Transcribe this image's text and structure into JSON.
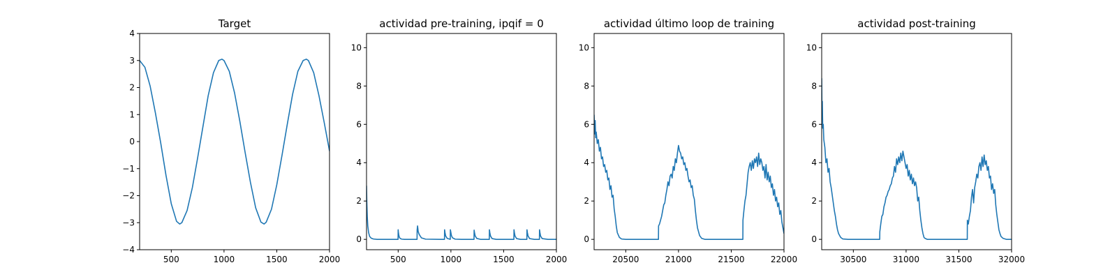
{
  "chart_data": [
    {
      "type": "line",
      "title": "Target",
      "xlabel": "",
      "ylabel": "",
      "xlim": [
        200,
        2000
      ],
      "ylim": [
        -4,
        4
      ],
      "xticks": [
        500,
        1000,
        1500,
        2000
      ],
      "yticks": [
        -4,
        -3,
        -2,
        -1,
        0,
        1,
        2,
        3,
        4
      ],
      "grid": false,
      "series": [
        {
          "color": "#1f77b4",
          "x": [
            200,
            250,
            300,
            350,
            400,
            450,
            500,
            550,
            580,
            600,
            650,
            700,
            750,
            800,
            850,
            900,
            950,
            980,
            1000,
            1050,
            1100,
            1150,
            1200,
            1250,
            1300,
            1350,
            1380,
            1400,
            1450,
            1500,
            1550,
            1600,
            1650,
            1700,
            1750,
            1780,
            1800,
            1850,
            1900,
            1950,
            2000
          ],
          "y": [
            3.0,
            2.75,
            2.05,
            1.05,
            -0.05,
            -1.25,
            -2.3,
            -2.95,
            -3.05,
            -3.0,
            -2.55,
            -1.7,
            -0.6,
            0.55,
            1.7,
            2.55,
            3.0,
            3.05,
            3.0,
            2.6,
            1.8,
            0.75,
            -0.4,
            -1.5,
            -2.45,
            -2.98,
            -3.05,
            -2.98,
            -2.5,
            -1.6,
            -0.5,
            0.65,
            1.75,
            2.6,
            3.0,
            3.05,
            3.0,
            2.55,
            1.7,
            0.7,
            -0.35
          ]
        }
      ]
    },
    {
      "type": "line",
      "title": "actividad pre-training, ipqif = 0",
      "xlabel": "",
      "ylabel": "",
      "xlim": [
        200,
        2000
      ],
      "ylim": [
        -0.54,
        10.74
      ],
      "xticks": [
        500,
        1000,
        1500,
        2000
      ],
      "yticks": [
        0,
        2,
        4,
        6,
        8,
        10
      ],
      "grid": false,
      "series": [
        {
          "color": "#1f77b4",
          "x": [
            200,
            203,
            207,
            212,
            220,
            230,
            245,
            265,
            300,
            400,
            499,
            500,
            502,
            506,
            512,
            520,
            535,
            560,
            600,
            660,
            679,
            680,
            684,
            690,
            700,
            720,
            760,
            900,
            939,
            940,
            944,
            950,
            965,
            994,
            995,
            999,
            1005,
            1015,
            1040,
            1100,
            1200,
            1219,
            1220,
            1224,
            1230,
            1245,
            1280,
            1364,
            1365,
            1369,
            1375,
            1390,
            1430,
            1500,
            1597,
            1598,
            1602,
            1608,
            1623,
            1660,
            1720,
            1721,
            1725,
            1731,
            1746,
            1790,
            1839,
            1840,
            1844,
            1850,
            1865,
            1920,
            2000
          ],
          "y": [
            2.8,
            1.9,
            1.2,
            0.7,
            0.35,
            0.15,
            0.06,
            0.02,
            0.0,
            0.0,
            0.0,
            0.5,
            0.38,
            0.22,
            0.1,
            0.04,
            0.01,
            0.0,
            0.0,
            0.0,
            0.0,
            0.5,
            0.7,
            0.4,
            0.25,
            0.08,
            0.01,
            0.0,
            0.0,
            0.5,
            0.35,
            0.18,
            0.05,
            0.0,
            0.5,
            0.38,
            0.2,
            0.08,
            0.01,
            0.0,
            0.0,
            0.0,
            0.48,
            0.34,
            0.18,
            0.05,
            0.0,
            0.0,
            0.5,
            0.35,
            0.18,
            0.04,
            0.0,
            0.0,
            0.0,
            0.5,
            0.34,
            0.17,
            0.04,
            0.0,
            0.0,
            0.5,
            0.35,
            0.18,
            0.04,
            0.0,
            0.0,
            0.5,
            0.35,
            0.17,
            0.04,
            0.0,
            0.0
          ]
        }
      ]
    },
    {
      "type": "line",
      "title": "actividad último loop de training",
      "xlabel": "",
      "ylabel": "",
      "xlim": [
        20200,
        22000
      ],
      "ylim": [
        -0.54,
        10.74
      ],
      "xticks": [
        20500,
        21000,
        21500,
        22000
      ],
      "yticks": [
        0,
        2,
        4,
        6,
        8,
        10
      ],
      "grid": false,
      "series": [
        {
          "color": "#1f77b4",
          "x": [
            20200,
            20205,
            20210,
            20215,
            20220,
            20230,
            20240,
            20250,
            20260,
            20270,
            20280,
            20290,
            20300,
            20310,
            20320,
            20330,
            20340,
            20350,
            20360,
            20370,
            20380,
            20390,
            20400,
            20410,
            20420,
            20440,
            20460,
            20500,
            20600,
            20700,
            20800,
            20810,
            20811,
            20820,
            20830,
            20840,
            20850,
            20860,
            20870,
            20880,
            20890,
            20900,
            20910,
            20920,
            20930,
            20940,
            20950,
            20960,
            20970,
            20980,
            20990,
            21000,
            21010,
            21020,
            21030,
            21040,
            21050,
            21060,
            21070,
            21080,
            21090,
            21100,
            21110,
            21120,
            21130,
            21140,
            21150,
            21160,
            21170,
            21180,
            21200,
            21220,
            21250,
            21300,
            21400,
            21500,
            21600,
            21610,
            21611,
            21620,
            21630,
            21640,
            21650,
            21660,
            21670,
            21680,
            21690,
            21700,
            21710,
            21720,
            21730,
            21740,
            21750,
            21760,
            21770,
            21780,
            21790,
            21800,
            21810,
            21820,
            21830,
            21840,
            21850,
            21860,
            21870,
            21880,
            21890,
            21900,
            21910,
            21920,
            21930,
            21940,
            21950,
            21960,
            21970,
            21980,
            21990,
            22000
          ],
          "y": [
            6.5,
            5.5,
            6.2,
            5.3,
            5.6,
            5.0,
            5.2,
            4.6,
            4.8,
            4.2,
            4.3,
            3.8,
            3.9,
            3.5,
            3.6,
            3.1,
            3.2,
            2.6,
            2.8,
            2.2,
            2.3,
            1.6,
            1.2,
            0.7,
            0.35,
            0.1,
            0.02,
            0.0,
            0.0,
            0.0,
            0.0,
            0.0,
            0.7,
            0.8,
            1.0,
            1.2,
            1.5,
            1.8,
            1.9,
            2.3,
            2.6,
            3.0,
            2.8,
            3.3,
            3.4,
            3.2,
            3.8,
            3.6,
            4.2,
            4.0,
            4.5,
            4.9,
            4.6,
            4.5,
            4.2,
            4.3,
            3.9,
            4.0,
            3.6,
            3.7,
            3.3,
            3.0,
            3.1,
            2.7,
            2.8,
            2.3,
            2.1,
            1.5,
            1.0,
            0.6,
            0.2,
            0.05,
            0.0,
            0.0,
            0.0,
            0.0,
            0.0,
            0.0,
            1.0,
            1.5,
            2.0,
            2.3,
            2.9,
            3.5,
            3.8,
            4.0,
            3.6,
            4.1,
            3.7,
            4.2,
            4.0,
            4.3,
            3.8,
            4.5,
            3.9,
            4.2,
            4.0,
            3.6,
            3.8,
            3.2,
            3.9,
            3.1,
            3.5,
            3.0,
            3.3,
            2.7,
            2.9,
            2.3,
            2.6,
            2.0,
            2.2,
            1.7,
            1.9,
            1.3,
            1.5,
            0.9,
            0.6,
            0.3
          ]
        }
      ]
    },
    {
      "type": "line",
      "title": "actividad post-training",
      "xlabel": "",
      "ylabel": "",
      "xlim": [
        30200,
        32000
      ],
      "ylim": [
        -0.54,
        10.74
      ],
      "xticks": [
        30500,
        31000,
        31500,
        32000
      ],
      "yticks": [
        0,
        2,
        4,
        6,
        8,
        10
      ],
      "grid": false,
      "series": [
        {
          "color": "#1f77b4",
          "x": [
            30200,
            30203,
            30206,
            30210,
            30215,
            30220,
            30230,
            30240,
            30250,
            30260,
            30270,
            30280,
            30290,
            30300,
            30310,
            30320,
            30330,
            30340,
            30350,
            30360,
            30380,
            30400,
            30450,
            30500,
            30600,
            30700,
            30750,
            30751,
            30760,
            30770,
            30780,
            30790,
            30800,
            30810,
            30820,
            30830,
            30840,
            30850,
            30860,
            30870,
            30880,
            30890,
            30900,
            30910,
            30920,
            30930,
            30940,
            30950,
            30960,
            30970,
            30980,
            30990,
            31000,
            31010,
            31020,
            31030,
            31040,
            31050,
            31060,
            31070,
            31080,
            31090,
            31100,
            31110,
            31120,
            31130,
            31140,
            31150,
            31160,
            31170,
            31180,
            31200,
            31250,
            31300,
            31400,
            31500,
            31580,
            31581,
            31590,
            31600,
            31610,
            31620,
            31630,
            31640,
            31650,
            31660,
            31670,
            31680,
            31690,
            31700,
            31710,
            31720,
            31730,
            31740,
            31750,
            31760,
            31770,
            31780,
            31790,
            31800,
            31810,
            31820,
            31830,
            31840,
            31850,
            31860,
            31870,
            31880,
            31890,
            31900,
            31920,
            31950,
            32000
          ],
          "y": [
            8.4,
            6.5,
            7.2,
            5.8,
            6.0,
            5.2,
            4.8,
            4.0,
            4.2,
            3.5,
            3.7,
            3.0,
            2.7,
            2.3,
            1.9,
            1.5,
            1.2,
            0.8,
            0.5,
            0.3,
            0.1,
            0.02,
            0.0,
            0.0,
            0.0,
            0.0,
            0.0,
            0.4,
            0.8,
            1.2,
            1.3,
            1.7,
            1.9,
            2.2,
            2.3,
            2.5,
            2.6,
            2.8,
            2.9,
            3.2,
            3.3,
            3.8,
            3.5,
            4.2,
            3.9,
            4.3,
            4.0,
            4.5,
            4.1,
            4.6,
            4.3,
            4.0,
            3.7,
            3.9,
            3.3,
            3.6,
            3.1,
            3.4,
            2.9,
            3.2,
            2.8,
            3.0,
            2.7,
            2.0,
            2.2,
            1.5,
            1.0,
            0.6,
            0.3,
            0.1,
            0.05,
            0.0,
            0.0,
            0.0,
            0.0,
            0.0,
            0.0,
            1.0,
            0.8,
            1.2,
            1.5,
            2.2,
            2.6,
            1.9,
            2.7,
            3.0,
            3.4,
            3.2,
            3.8,
            4.0,
            3.6,
            4.3,
            3.8,
            4.4,
            3.9,
            4.1,
            3.6,
            3.8,
            3.2,
            3.3,
            2.6,
            2.9,
            2.4,
            2.6,
            1.8,
            1.3,
            0.9,
            0.5,
            0.3,
            0.15,
            0.05,
            0.0,
            0.0
          ]
        }
      ]
    }
  ]
}
